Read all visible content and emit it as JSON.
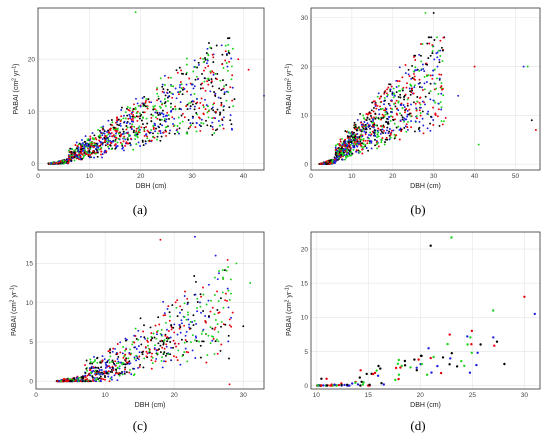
{
  "colors": {
    "red": "#e8000b",
    "blue": "#1f1fe0",
    "green": "#1bd31b",
    "black": "#000000",
    "grid": "#e5e5e5",
    "frame": "#333333"
  },
  "chart_data": [
    {
      "caption": "(a)",
      "type": "scatter",
      "xlabel": "DBH (cm)",
      "ylabel_text": "PABAI (cm",
      "ylabel_sup1": "2",
      "ylabel_mid": " yr",
      "ylabel_sup2": "-1",
      "ylabel_end": ")",
      "xlim": [
        0,
        44
      ],
      "ylim": [
        -1.2,
        29.8
      ],
      "xticks": [
        0,
        10,
        20,
        30,
        40
      ],
      "yticks": [
        0,
        10,
        20
      ],
      "grid": true,
      "cloud": {
        "n": 1350,
        "xmin": 2,
        "xmax": 42,
        "xmode": 7,
        "slope": 0.6,
        "offset": 1.4,
        "spread": 3.5,
        "spread_grow": 0.06,
        "ymax": 28
      },
      "outliers": [
        [
          19,
          29
        ],
        [
          37,
          24
        ],
        [
          41,
          18
        ],
        [
          44,
          13
        ],
        [
          38,
          11
        ],
        [
          36,
          16
        ],
        [
          39,
          20
        ],
        [
          33,
          22
        ]
      ]
    },
    {
      "caption": "(b)",
      "type": "scatter",
      "xlabel": "DBH (cm)",
      "ylabel_text": "PABAI (cm",
      "ylabel_sup1": "2",
      "ylabel_mid": " yr",
      "ylabel_sup2": "-1",
      "ylabel_end": ")",
      "xlim": [
        0,
        56
      ],
      "ylim": [
        -1.2,
        32.0
      ],
      "xticks": [
        0,
        10,
        20,
        30,
        40,
        50
      ],
      "yticks": [
        0,
        10,
        20,
        30
      ],
      "grid": true,
      "cloud": {
        "n": 1250,
        "xmin": 2,
        "xmax": 36,
        "xmode": 6,
        "slope": 0.85,
        "offset": 2.0,
        "spread": 3.0,
        "spread_grow": 0.1,
        "ymax": 26
      },
      "outliers": [
        [
          28,
          31
        ],
        [
          30,
          31
        ],
        [
          40,
          20
        ],
        [
          52,
          20
        ],
        [
          53,
          20
        ],
        [
          54,
          9
        ],
        [
          55,
          7
        ],
        [
          36,
          14
        ],
        [
          41,
          4
        ]
      ]
    },
    {
      "caption": "(c)",
      "type": "scatter",
      "xlabel": "DBH (cm)",
      "ylabel_text": "PABAI (cm",
      "ylabel_sup1": "2",
      "ylabel_mid": " yr",
      "ylabel_sup2": "-1",
      "ylabel_end": ")",
      "xlim": [
        0,
        33
      ],
      "ylim": [
        -1.0,
        19.0
      ],
      "xticks": [
        0,
        10,
        20,
        30
      ],
      "yticks": [
        0,
        5,
        10,
        15
      ],
      "grid": true,
      "cloud": {
        "n": 900,
        "xmin": 3,
        "xmax": 31,
        "xmode": 9,
        "slope": 0.55,
        "offset": 3.5,
        "spread": 2.2,
        "spread_grow": 0.14,
        "ymax": 17
      },
      "outliers": [
        [
          18,
          18
        ],
        [
          23,
          18.4
        ],
        [
          31,
          12.5
        ],
        [
          30,
          7
        ],
        [
          28,
          -0.4
        ],
        [
          26,
          16
        ],
        [
          29,
          15
        ]
      ]
    },
    {
      "caption": "(d)",
      "type": "scatter",
      "xlabel": "DBH (cm)",
      "ylabel_text": "PABAI (cm",
      "ylabel_sup1": "2",
      "ylabel_mid": " yr",
      "ylabel_sup2": "-1",
      "ylabel_end": ")",
      "xlim": [
        9.5,
        31.5
      ],
      "ylim": [
        -0.5,
        22.5
      ],
      "xticks": [
        10,
        15,
        20,
        25,
        30
      ],
      "yticks": [
        0,
        5,
        10,
        15,
        20
      ],
      "grid": true,
      "cloud": {
        "n": 110,
        "xmin": 10,
        "xmax": 30,
        "xmode": 15,
        "slope": 0.55,
        "offset": 3.5,
        "spread": 3.2,
        "spread_grow": 0.0,
        "ymax": 21
      },
      "outliers": [
        [
          23,
          21.7
        ],
        [
          21,
          20.5
        ],
        [
          30,
          13
        ],
        [
          31,
          10.5
        ],
        [
          27,
          11
        ],
        [
          10.5,
          1
        ],
        [
          11,
          1
        ]
      ]
    }
  ]
}
